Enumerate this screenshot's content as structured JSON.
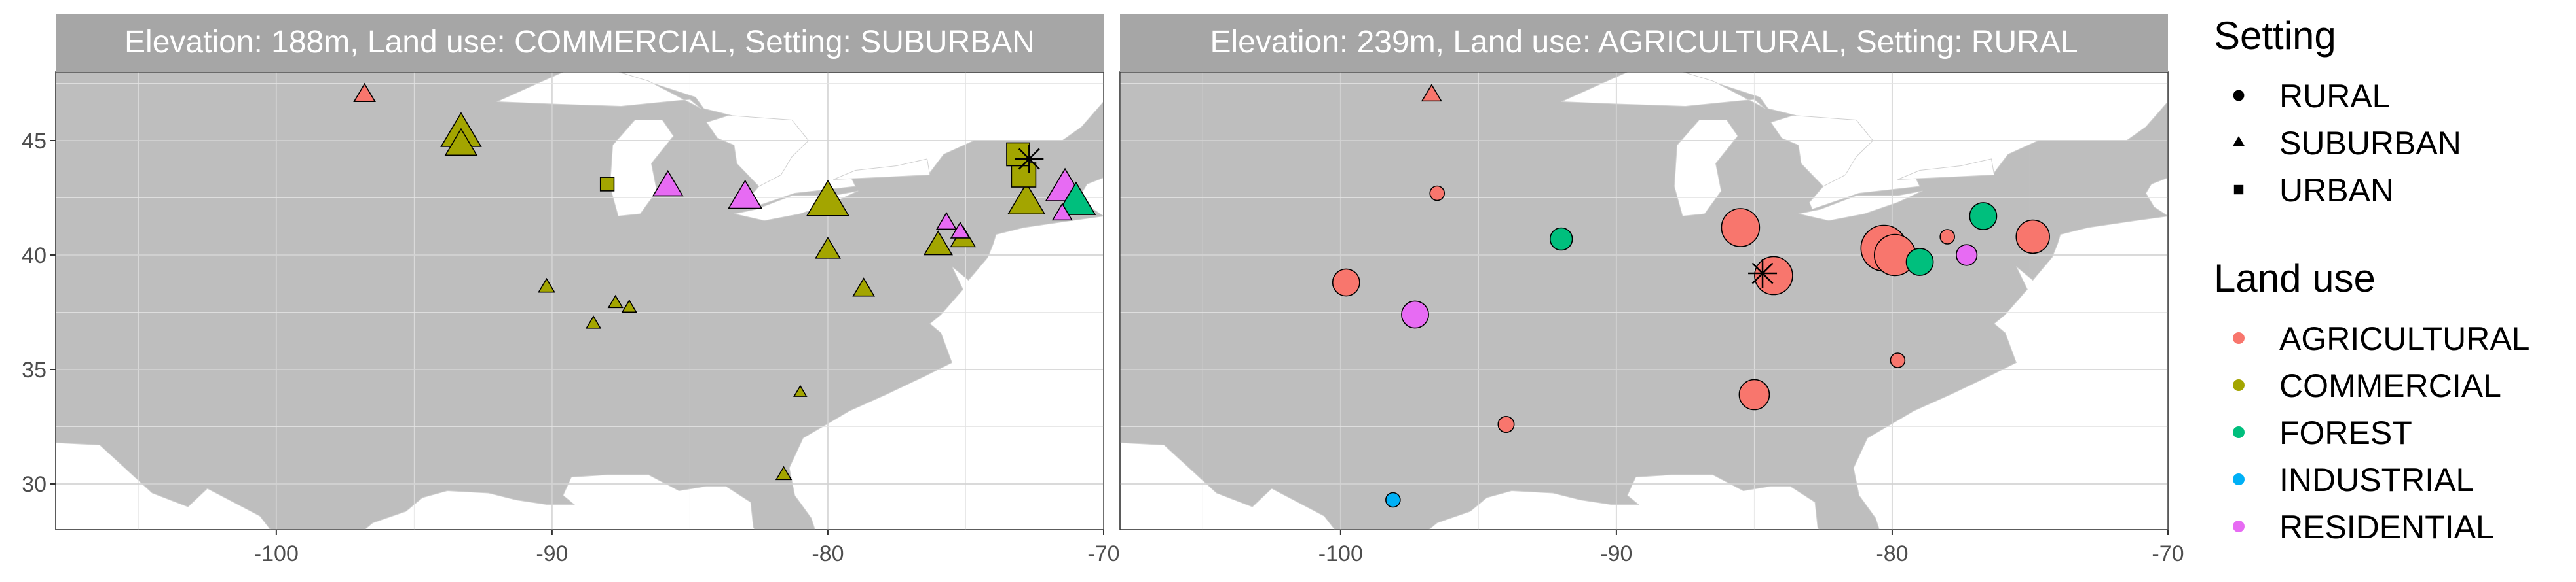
{
  "chart_data": {
    "type": "scatter",
    "subtype": "faceted-map",
    "xlim": [
      -108,
      -70
    ],
    "ylim": [
      28,
      48
    ],
    "x_ticks": [
      -100,
      -90,
      -80,
      -70
    ],
    "y_ticks": [
      30,
      35,
      40,
      45
    ],
    "x_tick_labels": [
      "-100",
      "-90",
      "-80",
      "-70"
    ],
    "y_tick_labels": [
      "30",
      "35",
      "40",
      "45"
    ],
    "grid": true,
    "colors": {
      "AGRICULTURAL": "#F8766D",
      "COMMERCIAL": "#A3A500",
      "FOREST": "#00BF7D",
      "INDUSTRIAL": "#00B0F6",
      "RESIDENTIAL": "#E76BF3",
      "panel_bg": "#BEBEBE",
      "strip_bg": "#A6A6A6",
      "grid": "#DDDDDD"
    },
    "facets": [
      {
        "title": "Elevation: 188m, Land use: COMMERCIAL, Setting: SUBURBAN",
        "target": {
          "lon": -72.7,
          "lat": 44.2
        },
        "points": [
          {
            "lon": -96.8,
            "lat": 47.0,
            "landuse": "AGRICULTURAL",
            "setting": "SUBURBAN",
            "size": 1.6
          },
          {
            "lon": -93.3,
            "lat": 45.3,
            "landuse": "COMMERCIAL",
            "setting": "SUBURBAN",
            "size": 3.8
          },
          {
            "lon": -93.3,
            "lat": 44.8,
            "landuse": "COMMERCIAL",
            "setting": "SUBURBAN",
            "size": 2.8
          },
          {
            "lon": -88.0,
            "lat": 43.1,
            "landuse": "COMMERCIAL",
            "setting": "URBAN",
            "size": 1.2
          },
          {
            "lon": -85.8,
            "lat": 43.0,
            "landuse": "RESIDENTIAL",
            "setting": "SUBURBAN",
            "size": 2.6
          },
          {
            "lon": -83.0,
            "lat": 42.5,
            "landuse": "RESIDENTIAL",
            "setting": "SUBURBAN",
            "size": 3.0
          },
          {
            "lon": -80.0,
            "lat": 42.3,
            "landuse": "COMMERCIAL",
            "setting": "SUBURBAN",
            "size": 4.0
          },
          {
            "lon": -80.0,
            "lat": 40.2,
            "landuse": "COMMERCIAL",
            "setting": "SUBURBAN",
            "size": 2.0
          },
          {
            "lon": -78.7,
            "lat": 38.5,
            "landuse": "COMMERCIAL",
            "setting": "SUBURBAN",
            "size": 1.6
          },
          {
            "lon": -75.7,
            "lat": 41.4,
            "landuse": "RESIDENTIAL",
            "setting": "SUBURBAN",
            "size": 1.4
          },
          {
            "lon": -75.2,
            "lat": 41.0,
            "landuse": "RESIDENTIAL",
            "setting": "SUBURBAN",
            "size": 1.3
          },
          {
            "lon": -76.0,
            "lat": 40.4,
            "landuse": "COMMERCIAL",
            "setting": "SUBURBAN",
            "size": 2.4
          },
          {
            "lon": -75.1,
            "lat": 40.7,
            "landuse": "COMMERCIAL",
            "setting": "SUBURBAN",
            "size": 2.0
          },
          {
            "lon": -73.1,
            "lat": 44.4,
            "landuse": "COMMERCIAL",
            "setting": "URBAN",
            "size": 2.6
          },
          {
            "lon": -72.9,
            "lat": 43.5,
            "landuse": "COMMERCIAL",
            "setting": "URBAN",
            "size": 2.8
          },
          {
            "lon": -72.8,
            "lat": 42.3,
            "landuse": "COMMERCIAL",
            "setting": "SUBURBAN",
            "size": 3.4
          },
          {
            "lon": -71.4,
            "lat": 42.9,
            "landuse": "RESIDENTIAL",
            "setting": "SUBURBAN",
            "size": 3.6
          },
          {
            "lon": -71.0,
            "lat": 42.3,
            "landuse": "FOREST",
            "setting": "SUBURBAN",
            "size": 3.6
          },
          {
            "lon": -71.5,
            "lat": 41.8,
            "landuse": "RESIDENTIAL",
            "setting": "SUBURBAN",
            "size": 1.4
          },
          {
            "lon": -90.2,
            "lat": 38.6,
            "landuse": "COMMERCIAL",
            "setting": "SUBURBAN",
            "size": 1.0
          },
          {
            "lon": -87.7,
            "lat": 37.9,
            "landuse": "COMMERCIAL",
            "setting": "SUBURBAN",
            "size": 0.8
          },
          {
            "lon": -87.2,
            "lat": 37.7,
            "landuse": "COMMERCIAL",
            "setting": "SUBURBAN",
            "size": 0.8
          },
          {
            "lon": -88.5,
            "lat": 37.0,
            "landuse": "COMMERCIAL",
            "setting": "SUBURBAN",
            "size": 0.8
          },
          {
            "lon": -81.0,
            "lat": 34.0,
            "landuse": "COMMERCIAL",
            "setting": "SUBURBAN",
            "size": 0.6
          },
          {
            "lon": -81.6,
            "lat": 30.4,
            "landuse": "COMMERCIAL",
            "setting": "SUBURBAN",
            "size": 0.9
          }
        ]
      },
      {
        "title": "Elevation: 239m, Land use: AGRICULTURAL, Setting: RURAL",
        "target": {
          "lon": -84.7,
          "lat": 39.2
        },
        "points": [
          {
            "lon": -96.7,
            "lat": 47.0,
            "landuse": "AGRICULTURAL",
            "setting": "SUBURBAN",
            "size": 1.4
          },
          {
            "lon": -96.5,
            "lat": 42.7,
            "landuse": "AGRICULTURAL",
            "setting": "RURAL",
            "size": 1.0
          },
          {
            "lon": -92.0,
            "lat": 40.7,
            "landuse": "FOREST",
            "setting": "RURAL",
            "size": 2.0
          },
          {
            "lon": -99.8,
            "lat": 38.8,
            "landuse": "AGRICULTURAL",
            "setting": "RURAL",
            "size": 2.6
          },
          {
            "lon": -97.3,
            "lat": 37.4,
            "landuse": "RESIDENTIAL",
            "setting": "RURAL",
            "size": 2.6
          },
          {
            "lon": -94.0,
            "lat": 32.6,
            "landuse": "AGRICULTURAL",
            "setting": "RURAL",
            "size": 1.2
          },
          {
            "lon": -98.1,
            "lat": 29.3,
            "landuse": "INDUSTRIAL",
            "setting": "RURAL",
            "size": 1.0
          },
          {
            "lon": -85.5,
            "lat": 41.2,
            "landuse": "AGRICULTURAL",
            "setting": "RURAL",
            "size": 4.0
          },
          {
            "lon": -84.3,
            "lat": 39.1,
            "landuse": "AGRICULTURAL",
            "setting": "RURAL",
            "size": 4.0
          },
          {
            "lon": -85.0,
            "lat": 33.9,
            "landuse": "AGRICULTURAL",
            "setting": "RURAL",
            "size": 3.0
          },
          {
            "lon": -80.3,
            "lat": 40.3,
            "landuse": "AGRICULTURAL",
            "setting": "RURAL",
            "size": 5.0
          },
          {
            "lon": -79.9,
            "lat": 40.0,
            "landuse": "AGRICULTURAL",
            "setting": "RURAL",
            "size": 4.4
          },
          {
            "lon": -79.0,
            "lat": 39.7,
            "landuse": "FOREST",
            "setting": "RURAL",
            "size": 2.6
          },
          {
            "lon": -78.0,
            "lat": 40.8,
            "landuse": "AGRICULTURAL",
            "setting": "RURAL",
            "size": 1.0
          },
          {
            "lon": -76.7,
            "lat": 41.7,
            "landuse": "FOREST",
            "setting": "RURAL",
            "size": 2.6
          },
          {
            "lon": -77.3,
            "lat": 40.0,
            "landuse": "RESIDENTIAL",
            "setting": "RURAL",
            "size": 1.8
          },
          {
            "lon": -74.9,
            "lat": 40.8,
            "landuse": "AGRICULTURAL",
            "setting": "RURAL",
            "size": 3.4
          },
          {
            "lon": -79.8,
            "lat": 35.4,
            "landuse": "AGRICULTURAL",
            "setting": "RURAL",
            "size": 1.0
          }
        ]
      }
    ],
    "legends": [
      {
        "title": "Setting",
        "entries": [
          {
            "label": "RURAL",
            "shape": "circle"
          },
          {
            "label": "SUBURBAN",
            "shape": "triangle"
          },
          {
            "label": "URBAN",
            "shape": "square"
          }
        ]
      },
      {
        "title": "Land use",
        "entries": [
          {
            "label": "AGRICULTURAL",
            "key": "AGRICULTURAL"
          },
          {
            "label": "COMMERCIAL",
            "key": "COMMERCIAL"
          },
          {
            "label": "FOREST",
            "key": "FOREST"
          },
          {
            "label": "INDUSTRIAL",
            "key": "INDUSTRIAL"
          },
          {
            "label": "RESIDENTIAL",
            "key": "RESIDENTIAL"
          }
        ]
      }
    ],
    "legend_position": "right"
  }
}
